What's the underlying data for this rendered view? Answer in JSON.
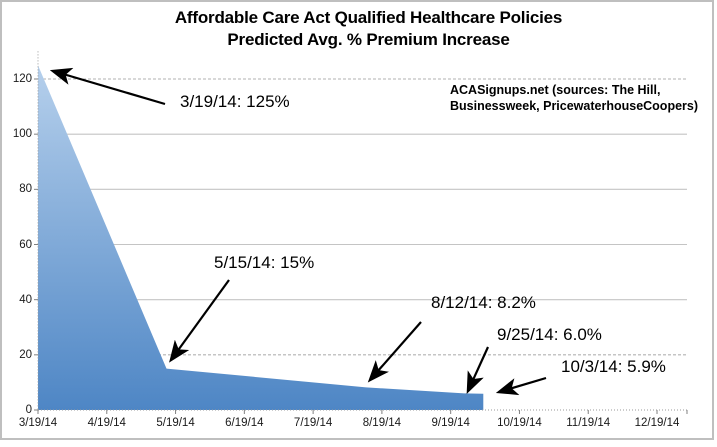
{
  "chart": {
    "title": "Affordable Care Act Qualified Healthcare Policies",
    "subtitle": "Predicted Avg. % Premium Increase",
    "source_line1": "ACASignups.net (sources: The Hill,",
    "source_line2": "Businessweek, PricewaterhouseCoopers)"
  },
  "chart_data": {
    "type": "area",
    "title": "Affordable Care Act Qualified Healthcare Policies",
    "subtitle": "Predicted Avg. % Premium Increase",
    "source_note": "ACASignups.net (sources: The Hill, Businessweek, PricewaterhouseCoopers)",
    "xlabel": "",
    "ylabel": "",
    "x_tick_labels": [
      "3/19/14",
      "4/19/14",
      "5/19/14",
      "6/19/14",
      "7/19/14",
      "8/19/14",
      "9/19/14",
      "10/19/14",
      "11/19/14",
      "12/19/14"
    ],
    "y_ticks": [
      0,
      20,
      40,
      60,
      80,
      100,
      120
    ],
    "ylim": [
      0,
      130
    ],
    "grid": true,
    "dashed_gridlines": [
      20,
      120
    ],
    "area_color_top": "#b6d0ec",
    "area_color_bottom": "#4e86c5",
    "gridline_color": "#c4c4c4",
    "axis_color": "#999999",
    "points": [
      {
        "date": "3/19/14",
        "value": 125,
        "label": "3/19/14: 125%"
      },
      {
        "date": "5/15/14",
        "value": 15,
        "label": "5/15/14: 15%"
      },
      {
        "date": "8/12/14",
        "value": 8.2,
        "label": "8/12/14: 8.2%"
      },
      {
        "date": "9/25/14",
        "value": 6.0,
        "label": "9/25/14: 6.0%"
      },
      {
        "date": "10/3/14",
        "value": 5.9,
        "label": "10/3/14: 5.9%"
      }
    ]
  }
}
